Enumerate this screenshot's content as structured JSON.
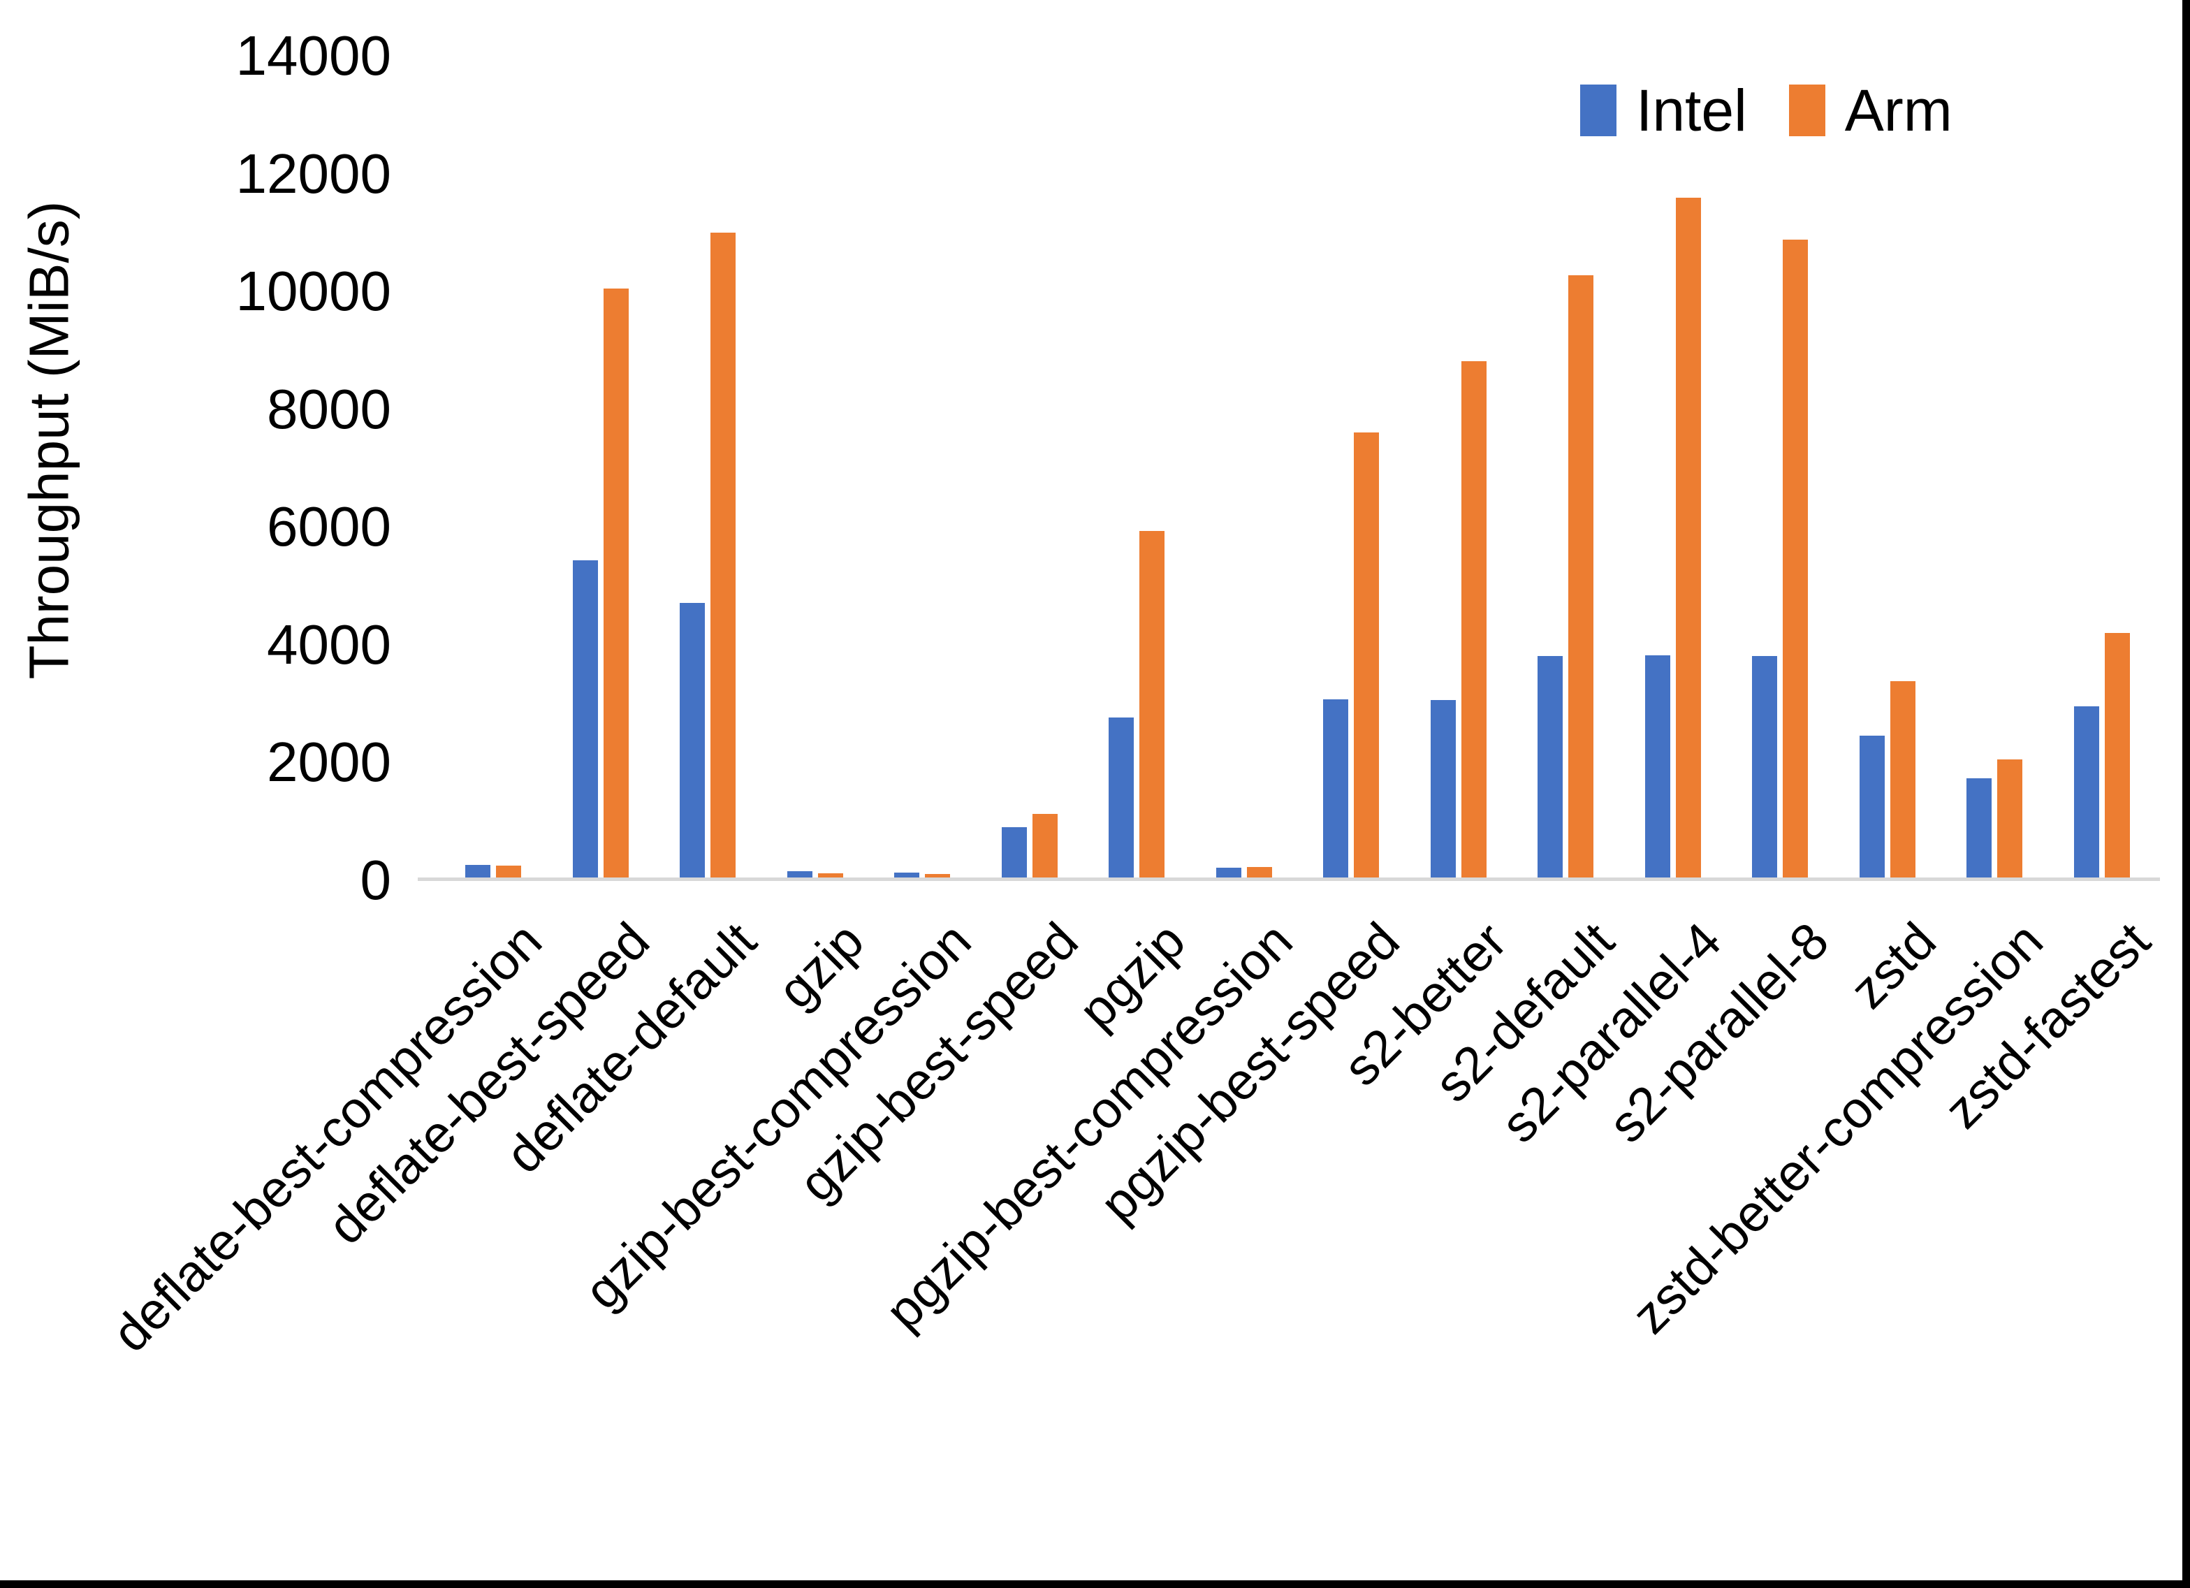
{
  "chart_data": {
    "type": "bar",
    "title": "",
    "xlabel": "",
    "ylabel": "Throughput (MiB/s)",
    "ylim": [
      0,
      14000
    ],
    "yticks": [
      0,
      2000,
      4000,
      6000,
      8000,
      10000,
      12000,
      14000
    ],
    "grid": false,
    "legend_position": "top-right",
    "categories": [
      "deflate-best-compression",
      "deflate-best-speed",
      "deflate-default",
      "gzip",
      "gzip-best-compression",
      "gzip-best-speed",
      "pgzip",
      "pgzip-best-compression",
      "pgzip-best-speed",
      "s2-better",
      "s2-default",
      "s2-parallel-4",
      "s2-parallel-8",
      "zstd",
      "zstd-better-compression",
      "zstd-fastest"
    ],
    "series": [
      {
        "name": "Intel",
        "color": "#4472C4",
        "values": [
          260,
          5430,
          4710,
          150,
          130,
          900,
          2760,
          210,
          3070,
          3060,
          3810,
          3820,
          3810,
          2450,
          1730,
          2960
        ]
      },
      {
        "name": "Arm",
        "color": "#ED7D31",
        "values": [
          255,
          10050,
          11000,
          120,
          105,
          1125,
          5930,
          230,
          7600,
          8820,
          10270,
          11590,
          10880,
          3380,
          2050,
          4200
        ]
      }
    ]
  },
  "legend": {
    "items": [
      {
        "label": "Intel",
        "color": "#4472C4"
      },
      {
        "label": "Arm",
        "color": "#ED7D31"
      }
    ]
  },
  "axis": {
    "y_title": "Throughput (MiB/s)",
    "line_color": "#d8d8d8"
  },
  "frame": {
    "border_color": "#000000"
  }
}
